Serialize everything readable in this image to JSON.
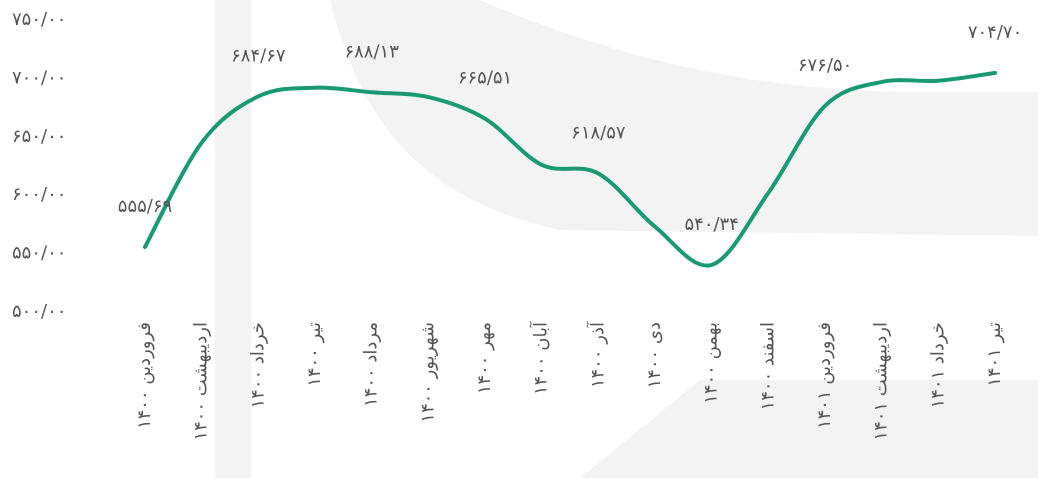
{
  "chart_data": {
    "type": "line",
    "categories": [
      "فروردین ۱۴۰۰",
      "اردیبهشت ۱۴۰۰",
      "خرداد ۱۴۰۰",
      "تیر ۱۴۰۰",
      "مرداد ۱۴۰۰",
      "شهریور ۱۴۰۰",
      "مهر ۱۴۰۰",
      "آبان ۱۴۰۰",
      "آذر ۱۴۰۰",
      "دی ۱۴۰۰",
      "بهمن ۱۴۰۰",
      "اسفند ۱۴۰۰",
      "فروردین ۱۴۰۱",
      "اردیبهشت ۱۴۰۱",
      "خرداد ۱۴۰۱",
      "تیر ۱۴۰۱"
    ],
    "values": [
      555.69,
      645,
      684.67,
      692,
      688.13,
      684,
      665.51,
      626,
      618.57,
      573,
      540.34,
      602,
      676.5,
      697,
      698,
      704.7
    ],
    "value_labels": [
      "۵۵۵/۶۹",
      null,
      "۶۸۴/۶۷",
      null,
      "۶۸۸/۱۳",
      null,
      "۶۶۵/۵۱",
      null,
      "۶۱۸/۵۷",
      null,
      "۵۴۰/۳۴",
      null,
      "۶۷۶/۵۰",
      null,
      null,
      "۷۰۴/۷۰"
    ],
    "color": "#1a9a74",
    "ylim": [
      500,
      750
    ],
    "yticks": [
      {
        "value": 500,
        "label": "۵۰۰/۰۰"
      },
      {
        "value": 550,
        "label": "۵۵۰/۰۰"
      },
      {
        "value": 600,
        "label": "۶۰۰/۰۰"
      },
      {
        "value": 650,
        "label": "۶۵۰/۰۰"
      },
      {
        "value": 700,
        "label": "۷۰۰/۰۰"
      },
      {
        "value": 750,
        "label": "۷۵۰/۰۰"
      }
    ],
    "grid": false
  }
}
